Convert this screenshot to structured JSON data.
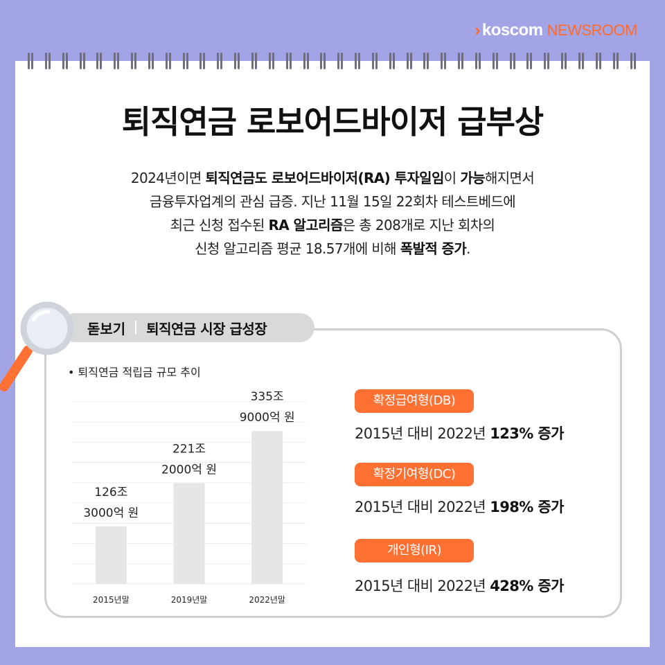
{
  "brand": {
    "chevron": "›",
    "name": "koscom",
    "tag": "NEWSROOM",
    "accent": "#ff6b2b"
  },
  "title": "퇴직연금 로보어드바이저 급부상",
  "description": {
    "line1": {
      "a": "2024년이면 ",
      "b": "퇴직연금도 로보어드바이저(RA) 투자일임",
      "c": "이 ",
      "d": "가능",
      "e": "해지면서"
    },
    "line2": "금융투자업계의 관심 급증. 지난 11월 15일 22회차 테스트베드에",
    "line3": {
      "a": "최근 신청 접수된 ",
      "b": "RA 알고리즘",
      "c": "은 총 208개로 지난 회차의"
    },
    "line4": {
      "a": "신청 알고리즘 평균 18.57개에 비해 ",
      "b": "폭발적 증가",
      "c": "."
    }
  },
  "tab": {
    "label": "돋보기",
    "title": "퇴직연금 시장 급성장"
  },
  "bullet": "• 퇴직연금 적립금 규모 추이",
  "chart_data": {
    "type": "bar",
    "categories": [
      "2015년말",
      "2019년말",
      "2022년말"
    ],
    "values": [
      126.3,
      221.2,
      335.9
    ],
    "units": "조 원",
    "data_labels": [
      [
        "126조",
        "3000억 원"
      ],
      [
        "221조",
        "2000억 원"
      ],
      [
        "335조",
        "9000억 원"
      ]
    ],
    "ylim": [
      0,
      400
    ],
    "grid": true
  },
  "categories": [
    {
      "label": "확정급여형(DB)",
      "stat_a": "2015년 대비 2022년 ",
      "stat_b": "123% 증가"
    },
    {
      "label": "확정기여형(DC)",
      "stat_a": "2015년 대비 2022년 ",
      "stat_b": "198% 증가"
    },
    {
      "label": "개인형(IR)",
      "stat_a": "2015년 대비 2022년 ",
      "stat_b": "428% 증가"
    }
  ],
  "colors": {
    "background": "#a3a4e6",
    "accent": "#ff7132",
    "bar": "#e6e6e6"
  }
}
